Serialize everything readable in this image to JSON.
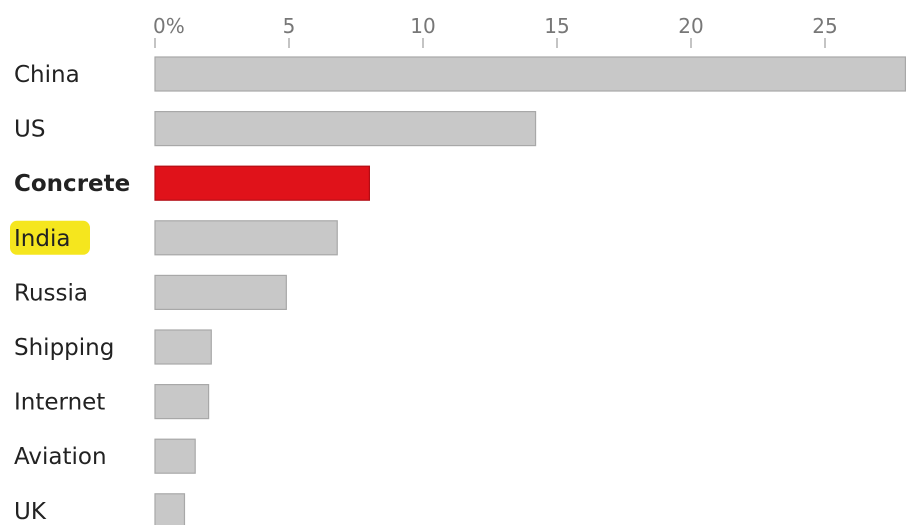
{
  "chart_data": {
    "type": "bar",
    "orientation": "horizontal",
    "categories": [
      "China",
      "US",
      "Concrete",
      "India",
      "Russia",
      "Shipping",
      "Internet",
      "Aviation",
      "UK"
    ],
    "values": [
      28,
      14.2,
      8,
      6.8,
      4.9,
      2.1,
      2,
      1.5,
      1.1
    ],
    "highlight_category": "Concrete",
    "marked_category": "India",
    "x_ticks": [
      "0%",
      "5",
      "10",
      "15",
      "20",
      "25"
    ],
    "x_tick_values": [
      0,
      5,
      10,
      15,
      20,
      25
    ],
    "xlim": [
      0,
      28.5
    ],
    "title": "",
    "xlabel": "",
    "ylabel": "",
    "grid": false,
    "legend": "none",
    "colors": {
      "bar": "#c8c8c8",
      "bar_stroke": "#a8a8a8",
      "highlight": "#e0121a",
      "highlight_stroke": "#b30d14",
      "label_highlight_bg": "#f5e61e",
      "tick": "#888888"
    }
  }
}
